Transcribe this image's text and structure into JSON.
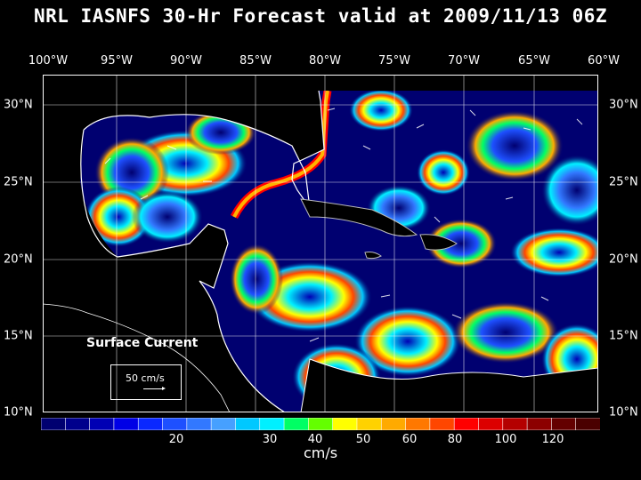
{
  "title": "NRL IASNFS  30-Hr Forecast valid at 2009/11/13 06Z",
  "lon_labels": [
    "100°W",
    "95°W",
    "90°W",
    "85°W",
    "80°W",
    "75°W",
    "70°W",
    "65°W",
    "60°W"
  ],
  "lat_labels": [
    "30°N",
    "25°N",
    "20°N",
    "15°N",
    "10°N"
  ],
  "region": {
    "lon_min": -100,
    "lon_max": -60,
    "lat_min": 10,
    "lat_max": 32
  },
  "legend_box": {
    "title": "Surface Current",
    "ref_label": "50 cm/s"
  },
  "colorbar": {
    "colors": [
      "#000070",
      "#00008c",
      "#0000b4",
      "#0000e6",
      "#0a28ff",
      "#1e50ff",
      "#3278ff",
      "#46a0ff",
      "#00c8ff",
      "#00f0ff",
      "#00ff64",
      "#64ff00",
      "#ffff00",
      "#ffd200",
      "#ffaa00",
      "#ff7800",
      "#ff4600",
      "#ff0000",
      "#dc0000",
      "#b40000",
      "#8c0000",
      "#640000",
      "#4a0000"
    ],
    "ticks": [
      "20",
      "30",
      "40",
      "50",
      "60",
      "80",
      "100",
      "120"
    ],
    "units": "cm/s"
  },
  "colors": {
    "background": "#000000",
    "land": "#000000",
    "coastline": "#ffffff",
    "ocean_calm": "#000070"
  }
}
